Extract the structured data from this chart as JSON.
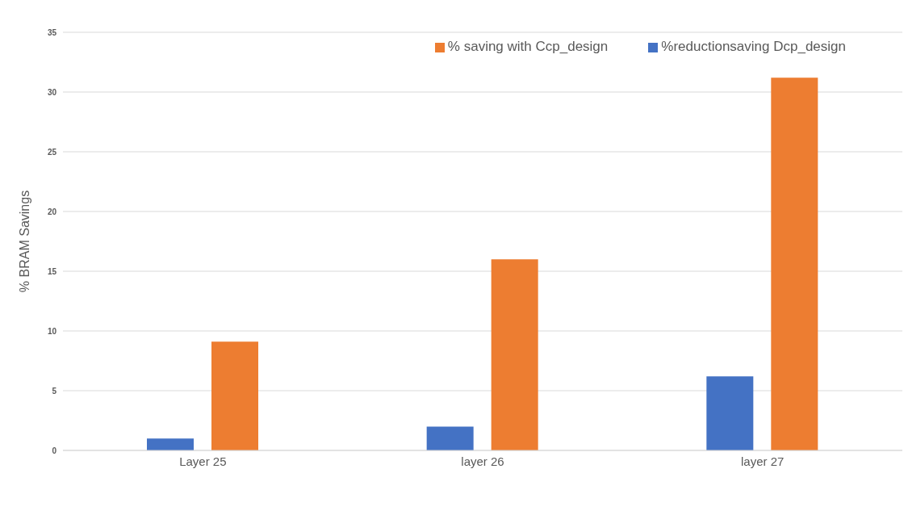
{
  "chart_data": {
    "type": "bar",
    "ylabel": "% BRAM Savings",
    "categories": [
      "Layer 25",
      "layer 26",
      "layer 27"
    ],
    "series": [
      {
        "name": "%reductionsaving  Dcp_design",
        "color": "#4472c4",
        "values": [
          1.0,
          2.0,
          6.2
        ]
      },
      {
        "name": "% saving with Ccp_design",
        "color": "#ed7d31",
        "values": [
          9.1,
          16.0,
          31.2
        ]
      }
    ],
    "ylim": [
      0,
      35
    ],
    "yticks": [
      0,
      5,
      10,
      15,
      20,
      25,
      30,
      35
    ],
    "grid": "y",
    "legend": "top right"
  }
}
